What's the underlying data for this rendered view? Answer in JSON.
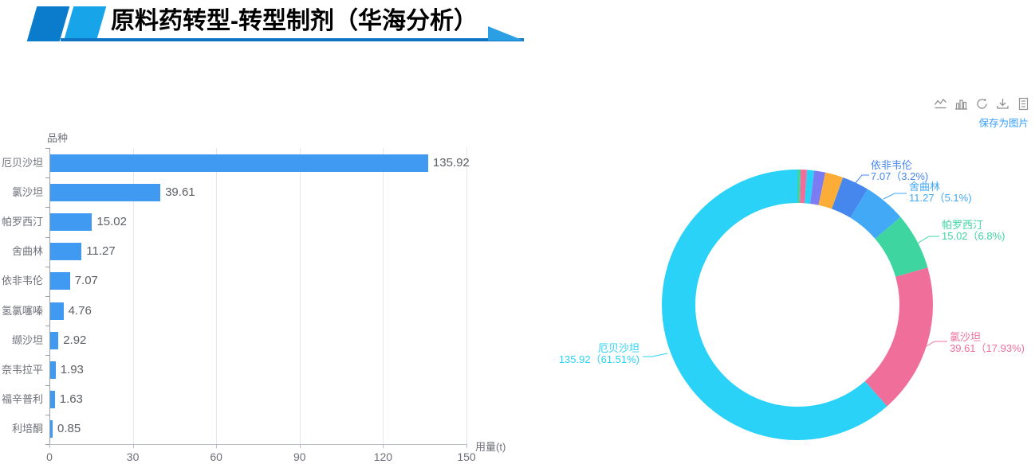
{
  "page": {
    "title": "原料药转型-转型制剂（华海分析）"
  },
  "header": {
    "colors": {
      "block1": "#0B7CCB",
      "block2": "#18A4E8",
      "line": "#0E74C4",
      "arrow": "#2B9FE4"
    }
  },
  "toolbox": {
    "icons": [
      {
        "name": "line-chart"
      },
      {
        "name": "bar-chart"
      },
      {
        "name": "restore"
      },
      {
        "name": "save-image"
      },
      {
        "name": "data-view"
      }
    ],
    "tooltip": "保存为图片",
    "icon_color": "#8F8F8F",
    "tooltip_color": "#3AA0FF"
  },
  "chart_data": [
    {
      "type": "bar",
      "orientation": "horizontal",
      "axis_title": "品种",
      "categories": [
        "厄贝沙坦",
        "氯沙坦",
        "帕罗西汀",
        "舍曲林",
        "依非韦伦",
        "氢氯噻嗪",
        "缬沙坦",
        "奈韦拉平",
        "福辛普利",
        "利培酮"
      ],
      "values": [
        135.92,
        39.61,
        15.02,
        11.27,
        7.07,
        4.76,
        2.92,
        1.93,
        1.63,
        0.85
      ],
      "bar_color": "#419AF2",
      "xlabel": "用量(t)",
      "xlim": [
        0,
        150
      ],
      "xticks": [
        0,
        30,
        60,
        90,
        120,
        150
      ],
      "grid": true
    },
    {
      "type": "pie",
      "donut": true,
      "inner_radius_ratio": 0.75,
      "direction": "counterclockwise-from-top",
      "slices": [
        {
          "name": "厄贝沙坦",
          "value": 135.92,
          "pct": "61.51%",
          "color": "#2AD2F7",
          "label_line2": "135.92（61.51%)"
        },
        {
          "name": "氯沙坦",
          "value": 39.61,
          "pct": "17.93%",
          "color": "#F06F9A",
          "label_line2": "39.61（17.93%)"
        },
        {
          "name": "帕罗西汀",
          "value": 15.02,
          "pct": "6.8%",
          "color": "#3FD5A0",
          "label_line2": "15.02（6.8%)"
        },
        {
          "name": "舍曲林",
          "value": 11.27,
          "pct": "5.1%",
          "color": "#41A9F5",
          "label_line2": "11.27（5.1%)"
        },
        {
          "name": "依非韦伦",
          "value": 7.07,
          "pct": "3.2%",
          "color": "#4687EE",
          "label_line2": "7.07（3.2%)"
        },
        {
          "name": "氢氯噻嗪",
          "value": 4.76,
          "pct": "2.15%",
          "color": "#FBAD37"
        },
        {
          "name": "缬沙坦",
          "value": 2.92,
          "pct": "1.32%",
          "color": "#7C7CF2"
        },
        {
          "name": "奈韦拉平",
          "value": 1.93,
          "pct": "0.87%",
          "color": "#2AD2F7"
        },
        {
          "name": "福辛普利",
          "value": 1.63,
          "pct": "0.74%",
          "color": "#F06F9A"
        },
        {
          "name": "利培酮",
          "value": 0.85,
          "pct": "0.38%",
          "color": "#3FD5A0"
        }
      ]
    }
  ]
}
